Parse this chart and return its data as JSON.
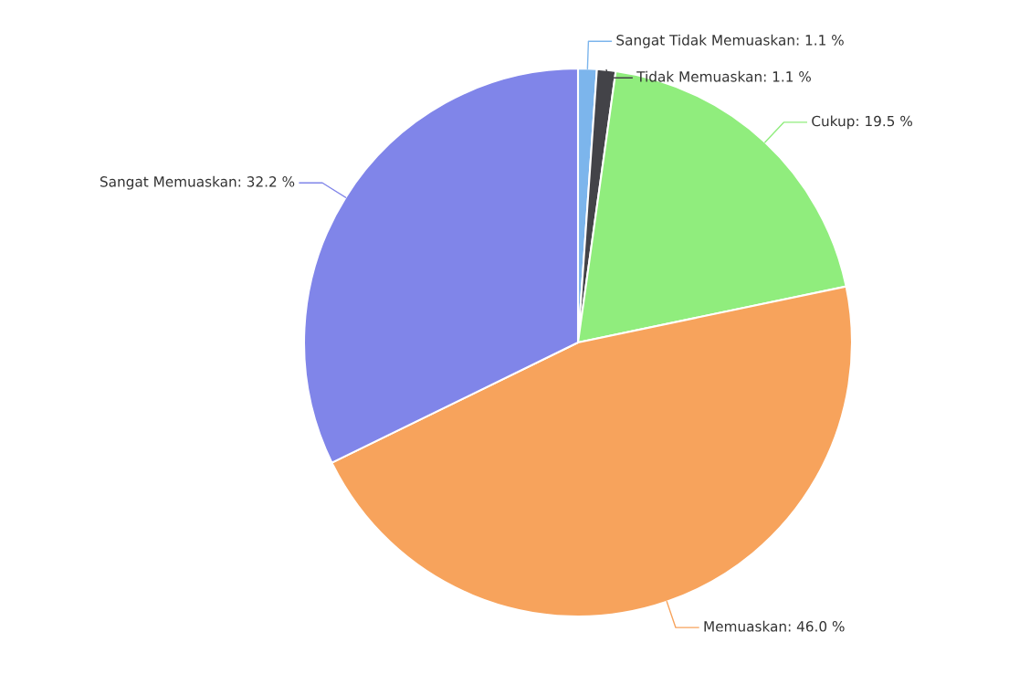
{
  "chart_data": {
    "type": "pie",
    "categories": [
      "Sangat Tidak Memuaskan",
      "Tidak Memuaskan",
      "Cukup",
      "Memuaskan",
      "Sangat Memuaskan"
    ],
    "values": [
      1.1,
      1.1,
      19.5,
      46.0,
      32.2
    ],
    "colors": [
      "#7cb5ec",
      "#434348",
      "#90ed7d",
      "#f7a35c",
      "#8085e9"
    ],
    "value_labels": [
      ": 1.1 %",
      ": 1.1 %",
      ": 19.5 %",
      ": 46.0 %",
      ": 32.2 %"
    ]
  }
}
